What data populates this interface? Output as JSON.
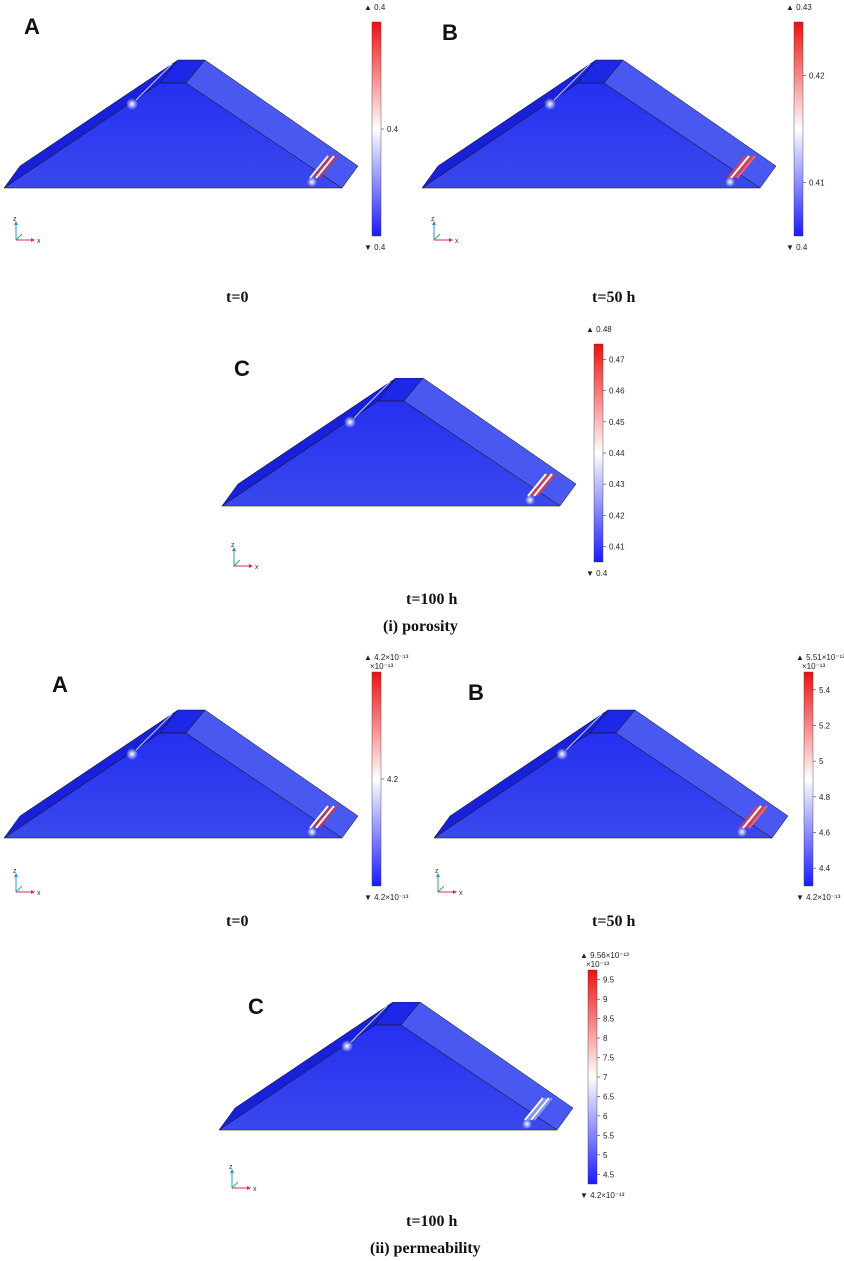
{
  "section_i": {
    "label": "(i) porosity",
    "panels": [
      {
        "letter": "A",
        "time": "t=0",
        "max": "0.4",
        "min": "0.4",
        "ticks": [
          "0.4"
        ],
        "exponent": "",
        "band_colors": [
          "#e8eaff",
          "#c43848",
          "#f0f2ff",
          "#c43848"
        ]
      },
      {
        "letter": "B",
        "time": "t=50 h",
        "max": "0.43",
        "min": "0.4",
        "ticks": [
          "0.42",
          "0.41"
        ],
        "exponent": "",
        "band_colors": [
          "#e04040",
          "#ffffff",
          "#e04040",
          "#ff6060"
        ]
      },
      {
        "letter": "C",
        "time": "t=100 h",
        "max": "0.48",
        "min": "0.4",
        "ticks": [
          "0.47",
          "0.46",
          "0.45",
          "0.44",
          "0.43",
          "0.42",
          "0.41"
        ],
        "exponent": "",
        "band_colors": [
          "#ffffff",
          "#e04040",
          "#ffffff",
          "#e04040"
        ]
      }
    ]
  },
  "section_ii": {
    "label": "(ii) permeability",
    "panels": [
      {
        "letter": "A",
        "time": "t=0",
        "max": "4.2×10⁻¹³",
        "min": "4.2×10⁻¹³",
        "ticks": [
          "4.2"
        ],
        "exponent": "×10⁻¹³",
        "band_colors": [
          "#ffffff",
          "#c43848",
          "#ffffff",
          "#c43848"
        ]
      },
      {
        "letter": "B",
        "time": "t=50 h",
        "max": "5.51×10⁻¹³",
        "min": "4.2×10⁻¹³",
        "ticks": [
          "5.4",
          "5.2",
          "5",
          "4.8",
          "4.6",
          "4.4"
        ],
        "exponent": "×10⁻¹³",
        "band_colors": [
          "#e04040",
          "#ffffff",
          "#e04040",
          "#ff6060"
        ]
      },
      {
        "letter": "C",
        "time": "t=100 h",
        "max": "9.56×10⁻¹³",
        "min": "4.2×10⁻¹³",
        "ticks": [
          "9.5",
          "9",
          "8.5",
          "8",
          "7.5",
          "7",
          "6.5",
          "6",
          "5.5",
          "5",
          "4.5"
        ],
        "exponent": "×10⁻¹³",
        "band_colors": [
          "#ffffff",
          "#9098f0",
          "#ffffff",
          "#9098f0"
        ]
      }
    ]
  },
  "axis_labels": {
    "z": "z",
    "x": "x"
  },
  "max_marker": "▲",
  "min_marker": "▼",
  "colors": {
    "low": "#1a1aff",
    "mid": "#ffffff",
    "high": "#ee1111",
    "face_top": "#1f2cf0",
    "face_slope": "#2a36e8",
    "face_front": "#3442ee"
  }
}
